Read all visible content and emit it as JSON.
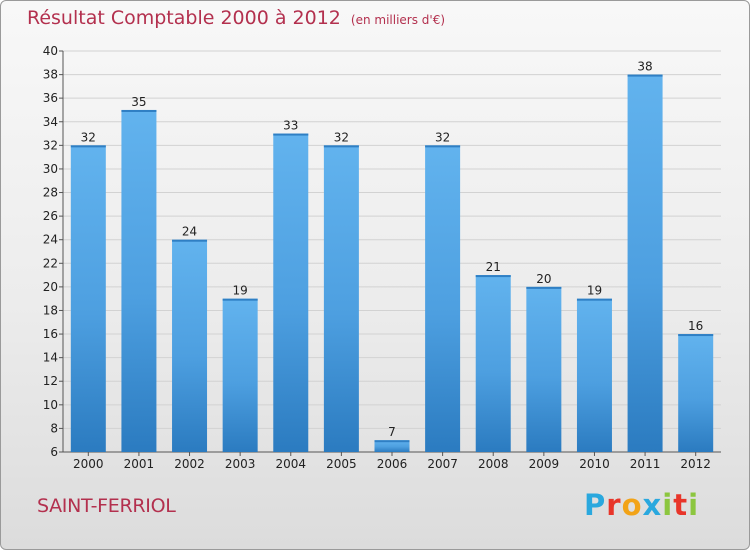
{
  "title": "Résultat Comptable 2000 à 2012",
  "unit": "(en milliers d'€)",
  "commune": "SAINT-FERRIOL",
  "logo": {
    "letters": [
      "P",
      "r",
      "o",
      "x",
      "i",
      "t",
      "i"
    ],
    "colors": [
      "#2aa8de",
      "#e8352a",
      "#f2a317",
      "#2aa8de",
      "#8cc63f",
      "#e8352a",
      "#8cc63f"
    ]
  },
  "colors": {
    "bar": "#5aabe8",
    "bar_dark": "#2f7fc4",
    "text_accent": "#b3304e"
  },
  "chart_data": {
    "type": "bar",
    "title": "Résultat Comptable 2000 à 2012",
    "ylabel": "(en milliers d'€)",
    "categories": [
      "2000",
      "2001",
      "2002",
      "2003",
      "2004",
      "2005",
      "2006",
      "2007",
      "2008",
      "2009",
      "2010",
      "2011",
      "2012"
    ],
    "values": [
      32,
      35,
      24,
      19,
      33,
      32,
      7,
      32,
      21,
      20,
      19,
      38,
      16
    ],
    "ylim": [
      6,
      40
    ],
    "yticks": [
      6,
      8,
      10,
      12,
      14,
      16,
      18,
      20,
      22,
      24,
      26,
      28,
      30,
      32,
      34,
      36,
      38,
      40
    ]
  }
}
